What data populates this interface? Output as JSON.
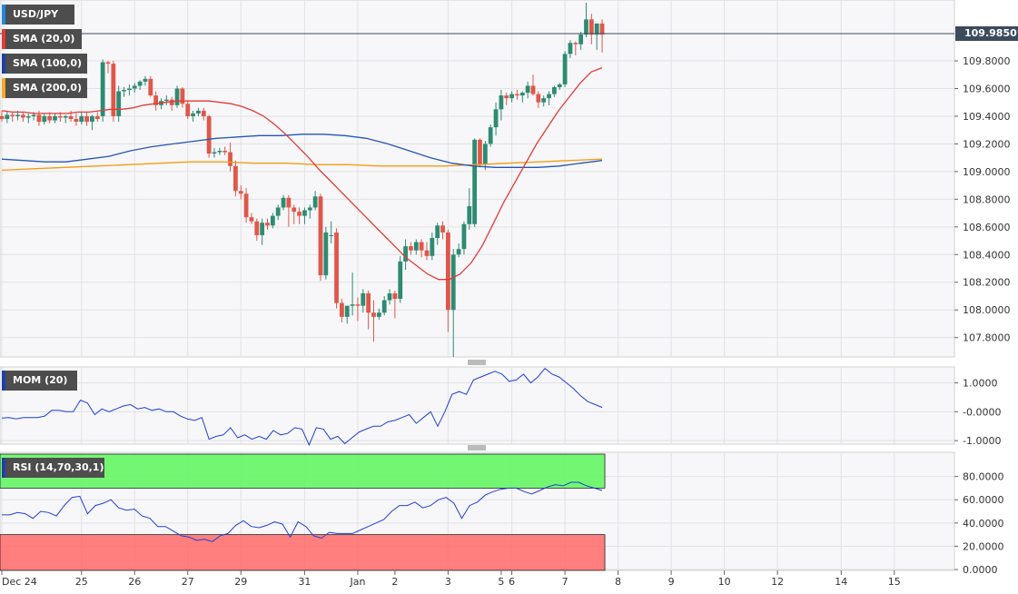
{
  "legends": {
    "main": [
      {
        "label": "USD/JPY",
        "color": "#1e88e5"
      },
      {
        "label": "SMA (20,0)",
        "color": "#e53935"
      },
      {
        "label": "SMA (100,0)",
        "color": "#1e40a8"
      },
      {
        "label": "SMA (200,0)",
        "color": "#f9a825"
      }
    ],
    "mom": {
      "label": "MOM (20)",
      "color": "#1e40a8"
    },
    "rsi": {
      "label": "RSI (14,70,30,1)",
      "color": "#1e40a8"
    }
  },
  "current_price": "109.9850",
  "colors": {
    "up": "#2e8b72",
    "down": "#e0574a",
    "sma20": "#e53935",
    "sma100": "#2456b3",
    "sma200": "#f39c12",
    "mom": "#1f3fd6",
    "rsi": "#1f3fd6",
    "overbought": "#5cf75c",
    "oversold": "#ff7070"
  },
  "chart_data": [
    {
      "type": "candlestick",
      "title": "USD/JPY",
      "ylim": [
        107.66,
        110.24
      ],
      "y_ticks": [
        "109.8000",
        "109.6000",
        "109.4000",
        "109.2000",
        "109.0000",
        "108.8000",
        "108.6000",
        "108.4000",
        "108.2000",
        "108.0000",
        "107.8000"
      ],
      "x_labels": [
        {
          "label": "Dec 24",
          "bar": 0
        },
        {
          "label": "25",
          "bar": 15
        },
        {
          "label": "26",
          "bar": 25
        },
        {
          "label": "27",
          "bar": 35
        },
        {
          "label": "29",
          "bar": 45
        },
        {
          "label": "31",
          "bar": 57
        },
        {
          "label": "Jan",
          "bar": 67
        },
        {
          "label": "2",
          "bar": 74
        },
        {
          "label": "3",
          "bar": 84
        },
        {
          "label": "5",
          "bar": 94
        },
        {
          "label": "6",
          "bar": 96
        },
        {
          "label": "7",
          "bar": 106
        },
        {
          "label": "8",
          "bar": 116
        },
        {
          "label": "9",
          "bar": 126
        },
        {
          "label": "10",
          "bar": 136
        },
        {
          "label": "12",
          "bar": 146
        },
        {
          "label": "14",
          "bar": 158
        },
        {
          "label": "15",
          "bar": 168
        }
      ],
      "candles": [
        [
          109.4,
          109.44,
          109.36,
          109.38
        ],
        [
          109.38,
          109.44,
          109.35,
          109.41
        ],
        [
          109.41,
          109.43,
          109.36,
          109.4
        ],
        [
          109.4,
          109.44,
          109.37,
          109.41
        ],
        [
          109.41,
          109.43,
          109.36,
          109.39
        ],
        [
          109.39,
          109.42,
          109.35,
          109.4
        ],
        [
          109.4,
          109.43,
          109.37,
          109.41
        ],
        [
          109.41,
          109.44,
          109.33,
          109.36
        ],
        [
          109.36,
          109.42,
          109.34,
          109.4
        ],
        [
          109.4,
          109.43,
          109.35,
          109.37
        ],
        [
          109.37,
          109.42,
          109.35,
          109.4
        ],
        [
          109.4,
          109.43,
          109.36,
          109.39
        ],
        [
          109.39,
          109.41,
          109.35,
          109.4
        ],
        [
          109.4,
          109.44,
          109.36,
          109.38
        ],
        [
          109.38,
          109.42,
          109.33,
          109.36
        ],
        [
          109.36,
          109.43,
          109.34,
          109.4
        ],
        [
          109.4,
          109.43,
          109.33,
          109.36
        ],
        [
          109.36,
          109.41,
          109.3,
          109.4
        ],
        [
          109.4,
          109.43,
          109.36,
          109.38
        ],
        [
          109.4,
          109.81,
          109.36,
          109.79
        ],
        [
          109.79,
          109.8,
          109.71,
          109.78
        ],
        [
          109.78,
          109.8,
          109.36,
          109.4
        ],
        [
          109.4,
          109.62,
          109.36,
          109.58
        ],
        [
          109.58,
          109.61,
          109.54,
          109.59
        ],
        [
          109.59,
          109.63,
          109.55,
          109.6
        ],
        [
          109.6,
          109.64,
          109.57,
          109.62
        ],
        [
          109.62,
          109.66,
          109.59,
          109.65
        ],
        [
          109.65,
          109.69,
          109.62,
          109.67
        ],
        [
          109.67,
          109.69,
          109.54,
          109.55
        ],
        [
          109.55,
          109.58,
          109.44,
          109.48
        ],
        [
          109.48,
          109.53,
          109.45,
          109.51
        ],
        [
          109.51,
          109.55,
          109.48,
          109.52
        ],
        [
          109.52,
          109.54,
          109.44,
          109.48
        ],
        [
          109.48,
          109.62,
          109.46,
          109.6
        ],
        [
          109.6,
          109.61,
          109.46,
          109.49
        ],
        [
          109.49,
          109.51,
          109.38,
          109.4
        ],
        [
          109.4,
          109.44,
          109.36,
          109.42
        ],
        [
          109.42,
          109.46,
          109.4,
          109.44
        ],
        [
          109.44,
          109.46,
          109.37,
          109.4
        ],
        [
          109.4,
          109.41,
          109.1,
          109.13
        ],
        [
          109.13,
          109.17,
          109.1,
          109.14
        ],
        [
          109.14,
          109.17,
          109.12,
          109.15
        ],
        [
          109.15,
          109.18,
          109.12,
          109.14
        ],
        [
          109.14,
          109.21,
          109.0,
          109.04
        ],
        [
          109.04,
          109.08,
          108.82,
          108.86
        ],
        [
          108.86,
          108.9,
          108.8,
          108.84
        ],
        [
          108.84,
          108.88,
          108.63,
          108.67
        ],
        [
          108.67,
          108.7,
          108.62,
          108.64
        ],
        [
          108.64,
          108.66,
          108.5,
          108.54
        ],
        [
          108.54,
          108.66,
          108.47,
          108.63
        ],
        [
          108.63,
          108.66,
          108.58,
          108.61
        ],
        [
          108.61,
          108.7,
          108.59,
          108.68
        ],
        [
          108.68,
          108.76,
          108.65,
          108.74
        ],
        [
          108.74,
          108.83,
          108.72,
          108.81
        ],
        [
          108.81,
          108.83,
          108.6,
          108.74
        ],
        [
          108.74,
          108.76,
          108.62,
          108.71
        ],
        [
          108.71,
          108.74,
          108.62,
          108.68
        ],
        [
          108.68,
          108.74,
          108.62,
          108.72
        ],
        [
          108.72,
          108.76,
          108.66,
          108.74
        ],
        [
          108.74,
          108.86,
          108.72,
          108.82
        ],
        [
          108.82,
          108.84,
          108.21,
          108.25
        ],
        [
          108.25,
          108.6,
          108.22,
          108.56
        ],
        [
          108.54,
          108.64,
          108.48,
          108.54
        ],
        [
          108.56,
          108.59,
          108.01,
          108.05
        ],
        [
          108.05,
          108.08,
          107.91,
          107.95
        ],
        [
          107.95,
          108.03,
          107.9,
          108.03
        ],
        [
          108.03,
          108.27,
          107.96,
          108.04
        ],
        [
          108.04,
          108.09,
          107.92,
          108.03
        ],
        [
          108.03,
          108.15,
          107.98,
          108.12
        ],
        [
          108.12,
          108.14,
          107.86,
          107.98
        ],
        [
          107.98,
          108.07,
          107.77,
          107.95
        ],
        [
          107.95,
          108.01,
          107.93,
          107.98
        ],
        [
          107.98,
          108.1,
          107.96,
          108.07
        ],
        [
          108.07,
          108.15,
          108.04,
          108.12
        ],
        [
          108.12,
          108.14,
          107.94,
          108.08
        ],
        [
          108.08,
          108.39,
          108.05,
          108.35
        ],
        [
          108.35,
          108.51,
          108.29,
          108.46
        ],
        [
          108.46,
          108.49,
          108.4,
          108.43
        ],
        [
          108.43,
          108.51,
          108.4,
          108.49
        ],
        [
          108.49,
          108.51,
          108.38,
          108.43
        ],
        [
          108.43,
          108.49,
          108.36,
          108.39
        ],
        [
          108.39,
          108.56,
          108.36,
          108.52
        ],
        [
          108.52,
          108.63,
          108.47,
          108.61
        ],
        [
          108.61,
          108.64,
          108.51,
          108.56
        ],
        [
          108.56,
          108.58,
          107.84,
          108.0
        ],
        [
          108.0,
          108.44,
          107.66,
          108.4
        ],
        [
          108.4,
          108.48,
          108.38,
          108.44
        ],
        [
          108.44,
          108.64,
          108.4,
          108.62
        ],
        [
          108.62,
          108.88,
          108.58,
          108.75
        ],
        [
          108.62,
          109.24,
          108.6,
          109.23
        ],
        [
          109.23,
          109.24,
          109.03,
          109.05
        ],
        [
          109.05,
          109.22,
          109.01,
          109.2
        ],
        [
          109.2,
          109.34,
          109.18,
          109.32
        ],
        [
          109.32,
          109.5,
          109.26,
          109.45
        ],
        [
          109.45,
          109.59,
          109.37,
          109.55
        ],
        [
          109.55,
          109.57,
          109.48,
          109.53
        ],
        [
          109.53,
          109.58,
          109.5,
          109.56
        ],
        [
          109.56,
          109.59,
          109.52,
          109.55
        ],
        [
          109.55,
          109.58,
          109.5,
          109.57
        ],
        [
          109.57,
          109.65,
          109.53,
          109.62
        ],
        [
          109.62,
          109.7,
          109.55,
          109.56
        ],
        [
          109.56,
          109.58,
          109.46,
          109.5
        ],
        [
          109.5,
          109.55,
          109.47,
          109.53
        ],
        [
          109.53,
          109.58,
          109.48,
          109.56
        ],
        [
          109.56,
          109.62,
          109.54,
          109.61
        ],
        [
          109.61,
          109.64,
          109.59,
          109.63
        ],
        [
          109.63,
          109.87,
          109.61,
          109.85
        ],
        [
          109.85,
          109.95,
          109.82,
          109.93
        ],
        [
          109.93,
          109.94,
          109.84,
          109.92
        ],
        [
          109.92,
          110.01,
          109.88,
          109.99
        ],
        [
          109.99,
          110.22,
          109.97,
          110.1
        ],
        [
          110.1,
          110.14,
          109.92,
          109.99
        ],
        [
          109.99,
          110.05,
          109.88,
          110.07
        ],
        [
          110.07,
          110.1,
          109.86,
          109.99
        ]
      ],
      "sma20": [
        109.44,
        109.43,
        109.43,
        109.42,
        109.42,
        109.42,
        109.42,
        109.43,
        109.43,
        109.44,
        109.45,
        109.45,
        109.46,
        109.48,
        109.49,
        109.5,
        109.51,
        109.51,
        109.51,
        109.51,
        109.5,
        109.49,
        109.47,
        109.44,
        109.4,
        109.34,
        109.27,
        109.19,
        109.11,
        109.02,
        108.94,
        108.86,
        108.78,
        108.7,
        108.62,
        108.54,
        108.46,
        108.38,
        108.32,
        108.26,
        108.22,
        108.22,
        108.26,
        108.34,
        108.46,
        108.62,
        108.78,
        108.92,
        109.06,
        109.2,
        109.32,
        109.44,
        109.54,
        109.64,
        109.72,
        109.75
      ],
      "sma100": [
        109.09,
        109.08,
        109.07,
        109.07,
        109.09,
        109.11,
        109.15,
        109.18,
        109.2,
        109.22,
        109.24,
        109.25,
        109.26,
        109.26,
        109.27,
        109.27,
        109.26,
        109.24,
        109.2,
        109.15,
        109.1,
        109.06,
        109.04,
        109.03,
        109.03,
        109.03,
        109.04,
        109.06,
        109.08
      ],
      "sma200": [
        109.01,
        109.02,
        109.03,
        109.04,
        109.05,
        109.06,
        109.07,
        109.07,
        109.06,
        109.06,
        109.05,
        109.05,
        109.04,
        109.04,
        109.04,
        109.05,
        109.06,
        109.07,
        109.08,
        109.09
      ]
    },
    {
      "type": "line",
      "title": "MOM (20)",
      "ylim": [
        -1.12,
        1.55
      ],
      "y_ticks": [
        "1.0000",
        "-0.0000",
        "-1.0000"
      ],
      "values": [
        -0.22,
        -0.2,
        -0.25,
        -0.2,
        -0.2,
        -0.2,
        -0.15,
        0.05,
        0.05,
        0.0,
        0.0,
        0.4,
        0.3,
        -0.1,
        0.1,
        0.0,
        0.1,
        0.2,
        0.25,
        0.1,
        0.15,
        0.05,
        0.1,
        0.0,
        0.0,
        -0.15,
        -0.25,
        -0.3,
        -0.2,
        -0.95,
        -0.85,
        -0.8,
        -0.55,
        -0.9,
        -0.8,
        -0.95,
        -0.85,
        -0.95,
        -0.65,
        -0.8,
        -0.75,
        -0.55,
        -0.6,
        -1.15,
        -0.55,
        -0.6,
        -0.95,
        -0.85,
        -1.1,
        -0.9,
        -0.7,
        -0.6,
        -0.5,
        -0.5,
        -0.35,
        -0.3,
        -0.2,
        -0.1,
        -0.4,
        -0.2,
        0.0,
        -0.5,
        0.0,
        0.6,
        0.7,
        0.6,
        1.1,
        1.2,
        1.3,
        1.4,
        1.3,
        1.05,
        1.1,
        1.3,
        1.0,
        1.2,
        1.5,
        1.3,
        1.2,
        1.0,
        0.8,
        0.55,
        0.35,
        0.25,
        0.15
      ]
    },
    {
      "type": "line",
      "title": "RSI (14,70,30,1)",
      "ylim": [
        0,
        100
      ],
      "overbought": 70,
      "oversold": 30,
      "y_ticks": [
        "80.0000",
        "60.0000",
        "40.0000",
        "20.0000",
        "0.0000"
      ],
      "values": [
        47,
        47,
        49,
        48,
        44,
        50,
        49,
        46,
        55,
        62,
        63,
        48,
        55,
        57,
        60,
        53,
        51,
        52,
        46,
        44,
        37,
        37,
        33,
        29,
        28,
        25,
        26,
        24,
        29,
        31,
        38,
        42,
        37,
        36,
        38,
        41,
        39,
        28,
        41,
        37,
        29,
        27,
        32,
        31,
        31,
        31,
        34,
        37,
        40,
        43,
        50,
        55,
        55,
        58,
        53,
        55,
        60,
        62,
        57,
        44,
        55,
        58,
        64,
        67,
        69,
        70,
        70,
        67,
        65,
        68,
        71,
        73,
        72,
        75,
        75,
        72,
        70,
        68
      ]
    }
  ]
}
